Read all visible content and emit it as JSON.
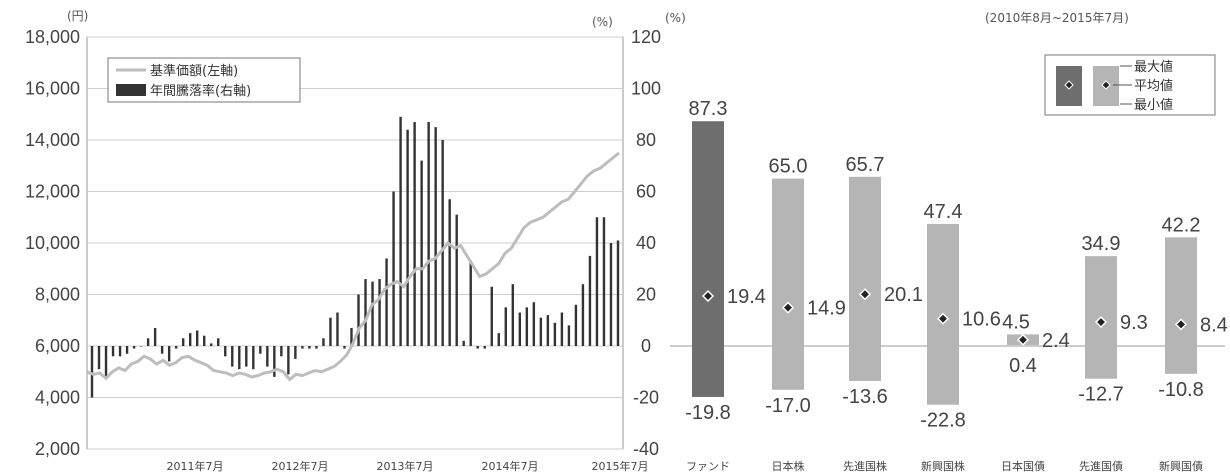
{
  "chart_data": [
    {
      "type": "line+bar",
      "title": "",
      "left_unit": "(円)",
      "right_unit": "(%)",
      "left_ylim": [
        2000,
        18000
      ],
      "left_ticks": [
        "2,000",
        "4,000",
        "6,000",
        "8,000",
        "10,000",
        "12,000",
        "14,000",
        "16,000",
        "18,000"
      ],
      "right_ylim": [
        -40,
        120
      ],
      "right_ticks": [
        "-40",
        "-20",
        "0",
        "20",
        "40",
        "60",
        "80",
        "100",
        "120"
      ],
      "x_ticks": [
        "2011年7月",
        "2012年7月",
        "2013年7月",
        "2014年7月",
        "2015年7月"
      ],
      "legend": [
        "基準価額(左軸)",
        "年間騰落率(右軸)"
      ],
      "series_line": {
        "name": "基準価額(左軸)",
        "values": [
          5000,
          4900,
          4950,
          4750,
          5000,
          5150,
          5050,
          5300,
          5400,
          5600,
          5500,
          5300,
          5450,
          5250,
          5350,
          5550,
          5600,
          5450,
          5350,
          5250,
          5050,
          5000,
          4950,
          4850,
          4950,
          4900,
          4800,
          4850,
          4950,
          5000,
          5100,
          5000,
          4700,
          4900,
          4850,
          4950,
          5050,
          5000,
          5100,
          5200,
          5400,
          5650,
          6100,
          6700,
          7000,
          7600,
          7800,
          8200,
          8400,
          8500,
          8300,
          8700,
          9000,
          9000,
          9300,
          9400,
          9700,
          10000,
          9800,
          9900,
          9500,
          9100,
          8700,
          8800,
          9000,
          9200,
          9600,
          9800,
          10200,
          10600,
          10800,
          10900,
          11000,
          11200,
          11400,
          11600,
          11700,
          12000,
          12300,
          12600,
          12800,
          12900,
          13100,
          13300,
          13500
        ]
      },
      "series_bars": {
        "name": "年間騰落率(右軸)",
        "values": [
          -20,
          -9,
          -12,
          -4,
          -4,
          -3,
          -1,
          0,
          3,
          7,
          -3,
          -6,
          -1,
          3,
          5,
          6,
          4,
          1,
          3,
          -4,
          -8,
          -9,
          -8,
          -9,
          -3,
          -8,
          -12,
          -4,
          -11,
          -5,
          -1,
          -1,
          -1,
          3,
          11,
          13,
          -1,
          7,
          20,
          26,
          25,
          26,
          34,
          60,
          89,
          84,
          87,
          72,
          87,
          85,
          80,
          57,
          51,
          2,
          33,
          -1,
          -1,
          23,
          5,
          15,
          24,
          13,
          15,
          17,
          11,
          12,
          9,
          13,
          8,
          16,
          24,
          35,
          50,
          50,
          40,
          41
        ]
      }
    },
    {
      "type": "range-bar",
      "title": "(2010年8月~2015年7月)",
      "unit": "(%)",
      "ylim": [
        -40,
        120
      ],
      "legend": [
        "最大値",
        "平均値",
        "最小値"
      ],
      "categories": [
        "ファンド",
        "日本株",
        "先進国株",
        "新興国株",
        "日本国債",
        "先進国債",
        "新興国債"
      ],
      "max": [
        87.3,
        65.0,
        65.7,
        47.4,
        4.5,
        34.9,
        42.2
      ],
      "avg": [
        19.4,
        14.9,
        20.1,
        10.6,
        2.4,
        9.3,
        8.4
      ],
      "min": [
        -19.8,
        -17.0,
        -13.6,
        -22.8,
        0.4,
        -12.7,
        -10.8
      ],
      "max_labels": [
        "87.3",
        "65.0",
        "65.7",
        "47.4",
        "4.5",
        "34.9",
        "42.2"
      ],
      "avg_labels": [
        "19.4",
        "14.9",
        "20.1",
        "10.6",
        "2.4",
        "9.3",
        "8.4"
      ],
      "min_labels": [
        "-19.8",
        "-17.0",
        "-13.6",
        "-22.8",
        "0.4",
        "-12.7",
        "-10.8"
      ],
      "colors": {
        "fund": "#6e6e6e",
        "others": "#b5b5b5"
      }
    }
  ]
}
